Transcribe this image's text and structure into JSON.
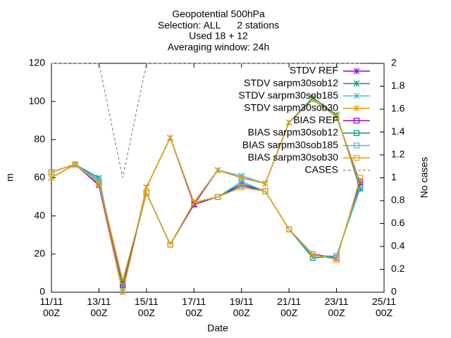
{
  "chart_data": {
    "type": "line",
    "title": [
      "Geopotential 500hPa",
      "Selection: ALL      2 stations",
      "Used 18 + 12",
      "Averaging window: 24h"
    ],
    "x_label": "Date",
    "y_label": "m",
    "y2_label": "No cases",
    "x": [
      0,
      1,
      2,
      3,
      4,
      5,
      6,
      7,
      8,
      9,
      10,
      11,
      12,
      13
    ],
    "xlim": [
      0,
      14
    ],
    "xticks": [
      {
        "value": 0,
        "label": "11/11\n00Z"
      },
      {
        "value": 2,
        "label": "13/11\n00Z"
      },
      {
        "value": 4,
        "label": "15/11\n00Z"
      },
      {
        "value": 6,
        "label": "17/11\n00Z"
      },
      {
        "value": 8,
        "label": "19/11\n00Z"
      },
      {
        "value": 10,
        "label": "21/11\n00Z"
      },
      {
        "value": 12,
        "label": "23/11\n00Z"
      },
      {
        "value": 14,
        "label": "25/11\n00Z"
      }
    ],
    "ylim": [
      0,
      120
    ],
    "yticks": [
      0,
      20,
      40,
      60,
      80,
      100,
      120
    ],
    "y2lim": [
      0,
      2
    ],
    "y2ticks": [
      0,
      0.2,
      0.4,
      0.6,
      0.8,
      1,
      1.2,
      1.4,
      1.6,
      1.8,
      2
    ],
    "legend": "upper right",
    "series": [
      {
        "name": "STDV REF",
        "color": "#9400d3",
        "marker": "star",
        "values": [
          60,
          67,
          56,
          0,
          55,
          81,
          46,
          64,
          60,
          57,
          89,
          101,
          92,
          57
        ]
      },
      {
        "name": "STDV sarpm30sob12",
        "color": "#009e73",
        "marker": "star",
        "values": [
          60,
          67,
          60,
          1,
          55,
          81,
          47,
          64,
          61,
          57,
          89,
          102,
          93,
          54
        ]
      },
      {
        "name": "STDV sarpm30sob185",
        "color": "#56b4e9",
        "marker": "star",
        "values": [
          60,
          67,
          59,
          1,
          55,
          81,
          47,
          64,
          61,
          57,
          89,
          101,
          92,
          56
        ]
      },
      {
        "name": "STDV sarpm30sob30",
        "color": "#e69f00",
        "marker": "star",
        "values": [
          60,
          67,
          57,
          0,
          55,
          81,
          47,
          64,
          60,
          57,
          89,
          101,
          92,
          56
        ]
      },
      {
        "name": "BIAS REF",
        "color": "#9400d3",
        "marker": "square",
        "values": [
          63,
          67,
          57,
          4,
          52,
          25,
          46,
          50,
          56,
          53,
          33,
          20,
          18,
          58
        ]
      },
      {
        "name": "BIAS sarpm30sob12",
        "color": "#009e73",
        "marker": "square",
        "values": [
          63,
          67,
          58,
          5,
          52,
          25,
          47,
          50,
          57,
          53,
          33,
          18,
          19,
          55
        ]
      },
      {
        "name": "BIAS sarpm30sob185",
        "color": "#56b4e9",
        "marker": "square",
        "values": [
          63,
          67,
          58,
          6,
          52,
          25,
          47,
          50,
          58,
          53,
          33,
          19,
          19,
          56
        ]
      },
      {
        "name": "BIAS sarpm30sob30",
        "color": "#e69f00",
        "marker": "square",
        "values": [
          63,
          67,
          57,
          6,
          52,
          25,
          47,
          50,
          55,
          53,
          33,
          20,
          17,
          60
        ]
      },
      {
        "name": "CASES",
        "color": "#a0a0a0",
        "marker": "none",
        "dash": true,
        "axis": "y2",
        "values": [
          2,
          2,
          2,
          1,
          2,
          2,
          2,
          2,
          2,
          2,
          2,
          2,
          2,
          2
        ]
      }
    ]
  }
}
